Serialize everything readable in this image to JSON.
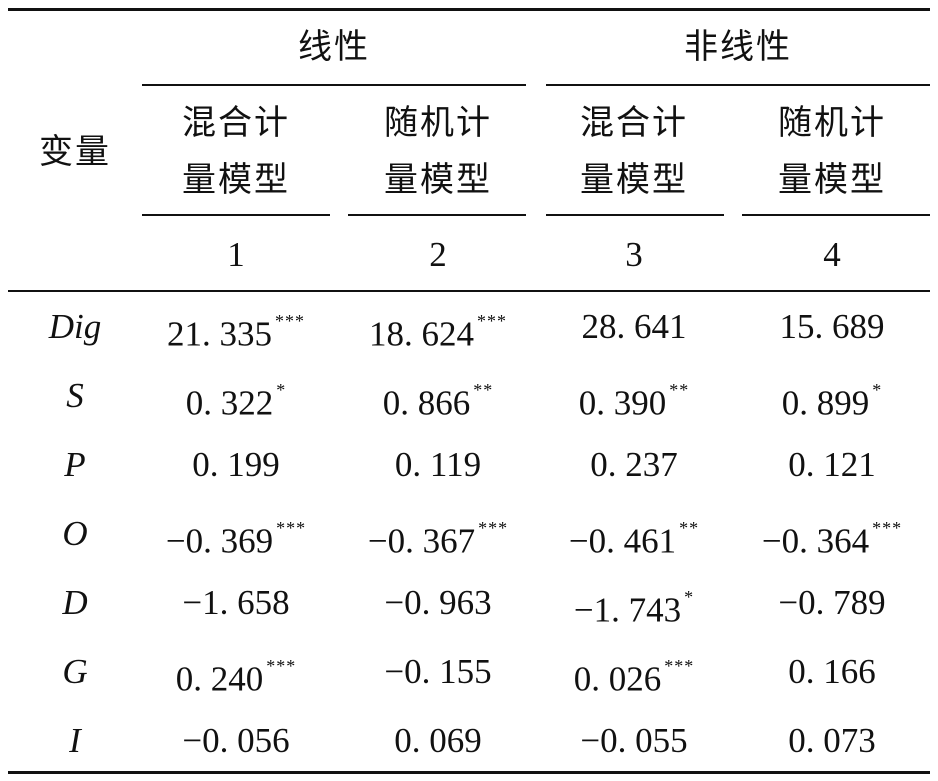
{
  "header": {
    "var_label": "变量",
    "group_linear": "线性",
    "group_nonlinear": "非线性",
    "models": [
      {
        "line1": "混合计",
        "line2": "量模型",
        "index": "1"
      },
      {
        "line1": "随机计",
        "line2": "量模型",
        "index": "2"
      },
      {
        "line1": "混合计",
        "line2": "量模型",
        "index": "3"
      },
      {
        "line1": "随机计",
        "line2": "量模型",
        "index": "4"
      }
    ]
  },
  "rows": [
    {
      "var": "Dig",
      "cells": [
        {
          "v": "21. 335",
          "s": "***"
        },
        {
          "v": "18. 624",
          "s": "***"
        },
        {
          "v": "28. 641",
          "s": ""
        },
        {
          "v": "15. 689",
          "s": ""
        }
      ]
    },
    {
      "var": "S",
      "cells": [
        {
          "v": "0. 322",
          "s": "*"
        },
        {
          "v": "0. 866",
          "s": "**"
        },
        {
          "v": "0. 390",
          "s": "**"
        },
        {
          "v": "0. 899",
          "s": "*"
        }
      ]
    },
    {
      "var": "P",
      "cells": [
        {
          "v": "0. 199",
          "s": ""
        },
        {
          "v": "0. 119",
          "s": ""
        },
        {
          "v": "0. 237",
          "s": ""
        },
        {
          "v": "0. 121",
          "s": ""
        }
      ]
    },
    {
      "var": "O",
      "cells": [
        {
          "v": "−0. 369",
          "s": "***"
        },
        {
          "v": "−0. 367",
          "s": "***"
        },
        {
          "v": "−0. 461",
          "s": "**"
        },
        {
          "v": "−0. 364",
          "s": "***"
        }
      ]
    },
    {
      "var": "D",
      "cells": [
        {
          "v": "−1. 658",
          "s": ""
        },
        {
          "v": "−0. 963",
          "s": ""
        },
        {
          "v": "−1. 743",
          "s": "*"
        },
        {
          "v": "−0. 789",
          "s": ""
        }
      ]
    },
    {
      "var": "G",
      "cells": [
        {
          "v": "0. 240",
          "s": "***"
        },
        {
          "v": "−0. 155",
          "s": ""
        },
        {
          "v": "0. 026",
          "s": "***"
        },
        {
          "v": "0. 166",
          "s": ""
        }
      ]
    },
    {
      "var": "I",
      "cells": [
        {
          "v": "−0. 056",
          "s": ""
        },
        {
          "v": "0. 069",
          "s": ""
        },
        {
          "v": "−0. 055",
          "s": ""
        },
        {
          "v": "0. 073",
          "s": ""
        }
      ]
    }
  ]
}
